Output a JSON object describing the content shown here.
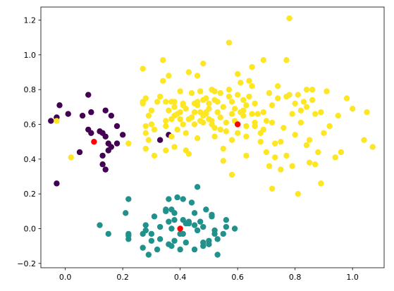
{
  "chart_data": {
    "type": "scatter",
    "title": "",
    "xlabel": "",
    "ylabel": "",
    "xlim": [
      -0.085,
      1.11
    ],
    "ylim": [
      -0.225,
      1.275
    ],
    "x_ticks": [
      0.0,
      0.2,
      0.4,
      0.6,
      0.8,
      1.0
    ],
    "x_tick_labels": [
      "0.0",
      "0.2",
      "0.4",
      "0.6",
      "0.8",
      "1.0"
    ],
    "y_ticks": [
      -0.2,
      0.0,
      0.2,
      0.4,
      0.6,
      0.8,
      1.0,
      1.2
    ],
    "y_tick_labels": [
      "−0.2",
      "0.0",
      "0.2",
      "0.4",
      "0.6",
      "0.8",
      "1.0",
      "1.2"
    ],
    "grid": false,
    "legend": "none",
    "series": [
      {
        "color": "#440154",
        "points": [
          [
            -0.05,
            0.62
          ],
          [
            -0.03,
            0.64
          ],
          [
            -0.03,
            0.26
          ],
          [
            -0.02,
            0.71
          ],
          [
            0.01,
            0.66
          ],
          [
            0.05,
            0.44
          ],
          [
            0.06,
            0.65
          ],
          [
            0.08,
            0.57
          ],
          [
            0.08,
            0.77
          ],
          [
            0.09,
            0.67
          ],
          [
            0.09,
            0.55
          ],
          [
            0.12,
            0.56
          ],
          [
            0.13,
            0.55
          ],
          [
            0.13,
            0.42
          ],
          [
            0.14,
            0.53
          ],
          [
            0.15,
            0.49
          ],
          [
            0.14,
            0.68
          ],
          [
            0.15,
            0.45
          ],
          [
            0.16,
            0.65
          ],
          [
            0.16,
            0.47
          ],
          [
            0.18,
            0.59
          ],
          [
            0.2,
            0.54
          ],
          [
            0.18,
            0.49
          ],
          [
            0.14,
            0.34
          ],
          [
            0.13,
            0.37
          ],
          [
            0.33,
            0.51
          ],
          [
            0.36,
            0.54
          ]
        ]
      },
      {
        "color": "#21918c",
        "points": [
          [
            0.12,
            0.02
          ],
          [
            0.15,
            -0.03
          ],
          [
            0.22,
            0.17
          ],
          [
            0.21,
            0.09
          ],
          [
            0.22,
            -0.04
          ],
          [
            0.22,
            -0.03
          ],
          [
            0.22,
            -0.06
          ],
          [
            0.27,
            -0.03
          ],
          [
            0.28,
            -0.01
          ],
          [
            0.28,
            0.02
          ],
          [
            0.29,
            -0.15
          ],
          [
            0.3,
            -0.07
          ],
          [
            0.3,
            -0.03
          ],
          [
            0.31,
            0.07
          ],
          [
            0.32,
            -0.12
          ],
          [
            0.33,
            -0.06
          ],
          [
            0.33,
            0.01
          ],
          [
            0.35,
            0.1
          ],
          [
            0.35,
            0.11
          ],
          [
            0.36,
            -0.09
          ],
          [
            0.36,
            0.04
          ],
          [
            0.37,
            0.11
          ],
          [
            0.37,
            0.0
          ],
          [
            0.37,
            -0.1
          ],
          [
            0.38,
            0.05
          ],
          [
            0.38,
            0.09
          ],
          [
            0.38,
            -0.07
          ],
          [
            0.39,
            0.18
          ],
          [
            0.4,
            -0.03
          ],
          [
            0.4,
            -0.12
          ],
          [
            0.41,
            0.05
          ],
          [
            0.41,
            0.17
          ],
          [
            0.42,
            0.03
          ],
          [
            0.42,
            -0.08
          ],
          [
            0.43,
            0.04
          ],
          [
            0.43,
            0.03
          ],
          [
            0.36,
            0.17
          ],
          [
            0.44,
            0.15
          ],
          [
            0.45,
            -0.12
          ],
          [
            0.45,
            0.09
          ],
          [
            0.46,
            0.24
          ],
          [
            0.47,
            0.04
          ],
          [
            0.46,
            -0.01
          ],
          [
            0.48,
            -0.08
          ],
          [
            0.48,
            -0.1
          ],
          [
            0.48,
            0.01
          ],
          [
            0.49,
            0.11
          ],
          [
            0.5,
            -0.07
          ],
          [
            0.5,
            -0.09
          ],
          [
            0.51,
            0.08
          ],
          [
            0.51,
            0.07
          ],
          [
            0.52,
            -0.01
          ],
          [
            0.52,
            -0.03
          ],
          [
            0.53,
            -0.06
          ],
          [
            0.53,
            -0.15
          ],
          [
            0.55,
            -0.03
          ],
          [
            0.56,
            0.05
          ],
          [
            0.56,
            0.01
          ],
          [
            0.59,
            0.0
          ],
          [
            0.41,
            -0.03
          ],
          [
            0.45,
            0.02
          ],
          [
            0.27,
            -0.11
          ]
        ]
      },
      {
        "color": "#fde725",
        "points": [
          [
            -0.03,
            0.62
          ],
          [
            0.02,
            0.41
          ],
          [
            0.22,
            0.49
          ],
          [
            0.27,
            0.92
          ],
          [
            0.27,
            0.73
          ],
          [
            0.28,
            0.75
          ],
          [
            0.28,
            0.59
          ],
          [
            0.28,
            0.55
          ],
          [
            0.28,
            0.46
          ],
          [
            0.29,
            0.51
          ],
          [
            0.29,
            0.65
          ],
          [
            0.3,
            0.68
          ],
          [
            0.3,
            0.6
          ],
          [
            0.31,
            0.57
          ],
          [
            0.31,
            0.42
          ],
          [
            0.32,
            0.73
          ],
          [
            0.33,
            0.76
          ],
          [
            0.34,
            0.85
          ],
          [
            0.34,
            0.97
          ],
          [
            0.35,
            0.62
          ],
          [
            0.35,
            0.59
          ],
          [
            0.35,
            0.45
          ],
          [
            0.35,
            0.73
          ],
          [
            0.36,
            0.88
          ],
          [
            0.36,
            0.68
          ],
          [
            0.37,
            0.73
          ],
          [
            0.37,
            0.53
          ],
          [
            0.37,
            0.63
          ],
          [
            0.38,
            0.65
          ],
          [
            0.38,
            0.47
          ],
          [
            0.38,
            0.73
          ],
          [
            0.38,
            0.7
          ],
          [
            0.39,
            0.66
          ],
          [
            0.39,
            0.57
          ],
          [
            0.4,
            0.79
          ],
          [
            0.4,
            0.67
          ],
          [
            0.4,
            0.63
          ],
          [
            0.41,
            0.6
          ],
          [
            0.41,
            0.71
          ],
          [
            0.41,
            0.72
          ],
          [
            0.42,
            0.45
          ],
          [
            0.42,
            0.55
          ],
          [
            0.42,
            0.69
          ],
          [
            0.43,
            0.63
          ],
          [
            0.43,
            0.43
          ],
          [
            0.44,
            0.64
          ],
          [
            0.44,
            0.78
          ],
          [
            0.45,
            0.72
          ],
          [
            0.45,
            0.6
          ],
          [
            0.45,
            0.67
          ],
          [
            0.46,
            0.52
          ],
          [
            0.46,
            0.71
          ],
          [
            0.46,
            0.73
          ],
          [
            0.46,
            0.88
          ],
          [
            0.47,
            0.67
          ],
          [
            0.47,
            0.62
          ],
          [
            0.47,
            0.79
          ],
          [
            0.48,
            0.61
          ],
          [
            0.48,
            0.65
          ],
          [
            0.48,
            0.95
          ],
          [
            0.48,
            0.74
          ],
          [
            0.49,
            0.75
          ],
          [
            0.49,
            0.67
          ],
          [
            0.49,
            0.66
          ],
          [
            0.5,
            0.72
          ],
          [
            0.5,
            0.69
          ],
          [
            0.5,
            0.63
          ],
          [
            0.51,
            0.6
          ],
          [
            0.51,
            0.62
          ],
          [
            0.51,
            0.8
          ],
          [
            0.52,
            0.79
          ],
          [
            0.52,
            0.74
          ],
          [
            0.52,
            0.53
          ],
          [
            0.53,
            0.73
          ],
          [
            0.53,
            0.67
          ],
          [
            0.54,
            0.57
          ],
          [
            0.54,
            0.78
          ],
          [
            0.55,
            0.7
          ],
          [
            0.55,
            0.46
          ],
          [
            0.55,
            0.39
          ],
          [
            0.56,
            0.56
          ],
          [
            0.56,
            0.61
          ],
          [
            0.57,
            1.07
          ],
          [
            0.57,
            0.76
          ],
          [
            0.57,
            0.8
          ],
          [
            0.58,
            0.66
          ],
          [
            0.58,
            0.73
          ],
          [
            0.58,
            0.51
          ],
          [
            0.58,
            0.31
          ],
          [
            0.59,
            0.62
          ],
          [
            0.59,
            0.69
          ],
          [
            0.6,
            0.89
          ],
          [
            0.6,
            0.55
          ],
          [
            0.6,
            0.77
          ],
          [
            0.61,
            0.84
          ],
          [
            0.61,
            0.67
          ],
          [
            0.62,
            0.65
          ],
          [
            0.62,
            0.74
          ],
          [
            0.62,
            0.68
          ],
          [
            0.63,
            0.59
          ],
          [
            0.63,
            0.71
          ],
          [
            0.63,
            0.53
          ],
          [
            0.64,
            0.76
          ],
          [
            0.64,
            0.85
          ],
          [
            0.65,
            0.82
          ],
          [
            0.65,
            0.66
          ],
          [
            0.66,
            0.61
          ],
          [
            0.66,
            0.72
          ],
          [
            0.67,
            0.66
          ],
          [
            0.68,
            0.55
          ],
          [
            0.68,
            0.5
          ],
          [
            0.69,
            0.57
          ],
          [
            0.69,
            0.97
          ],
          [
            0.69,
            0.67
          ],
          [
            0.7,
            0.62
          ],
          [
            0.7,
            0.44
          ],
          [
            0.71,
            0.78
          ],
          [
            0.71,
            0.36
          ],
          [
            0.72,
            0.23
          ],
          [
            0.72,
            0.61
          ],
          [
            0.72,
            0.71
          ],
          [
            0.73,
            0.41
          ],
          [
            0.73,
            0.49
          ],
          [
            0.74,
            0.75
          ],
          [
            0.74,
            0.82
          ],
          [
            0.75,
            0.5
          ],
          [
            0.75,
            0.34
          ],
          [
            0.76,
            0.58
          ],
          [
            0.77,
            0.42
          ],
          [
            0.77,
            0.76
          ],
          [
            0.77,
            0.97
          ],
          [
            0.78,
            1.21
          ],
          [
            0.78,
            0.77
          ],
          [
            0.79,
            0.66
          ],
          [
            0.79,
            0.36
          ],
          [
            0.8,
            0.54
          ],
          [
            0.8,
            0.72
          ],
          [
            0.81,
            0.2
          ],
          [
            0.81,
            0.77
          ],
          [
            0.82,
            0.68
          ],
          [
            0.82,
            0.61
          ],
          [
            0.83,
            0.73
          ],
          [
            0.84,
            0.48
          ],
          [
            0.84,
            0.8
          ],
          [
            0.84,
            0.7
          ],
          [
            0.85,
            0.38
          ],
          [
            0.85,
            0.51
          ],
          [
            0.86,
            0.8
          ],
          [
            0.86,
            0.74
          ],
          [
            0.87,
            0.66
          ],
          [
            0.87,
            0.37
          ],
          [
            0.88,
            0.44
          ],
          [
            0.89,
            0.67
          ],
          [
            0.89,
            0.26
          ],
          [
            0.9,
            0.55
          ],
          [
            0.91,
            0.79
          ],
          [
            0.92,
            0.59
          ],
          [
            0.94,
            0.41
          ],
          [
            0.95,
            0.65
          ],
          [
            0.96,
            0.44
          ],
          [
            0.98,
            0.75
          ],
          [
            1.0,
            0.69
          ],
          [
            1.04,
            0.51
          ],
          [
            1.05,
            0.67
          ],
          [
            1.07,
            0.47
          ],
          [
            0.52,
            0.58
          ],
          [
            0.54,
            0.64
          ],
          [
            0.66,
            0.59
          ],
          [
            0.63,
            0.42
          ],
          [
            0.27,
            0.72
          ],
          [
            0.43,
            0.9
          ],
          [
            0.65,
            0.93
          ]
        ]
      },
      {
        "color": "#ff0000",
        "points": [
          [
            0.1,
            0.5
          ],
          [
            0.4,
            0.0
          ],
          [
            0.6,
            0.6
          ]
        ]
      }
    ]
  }
}
